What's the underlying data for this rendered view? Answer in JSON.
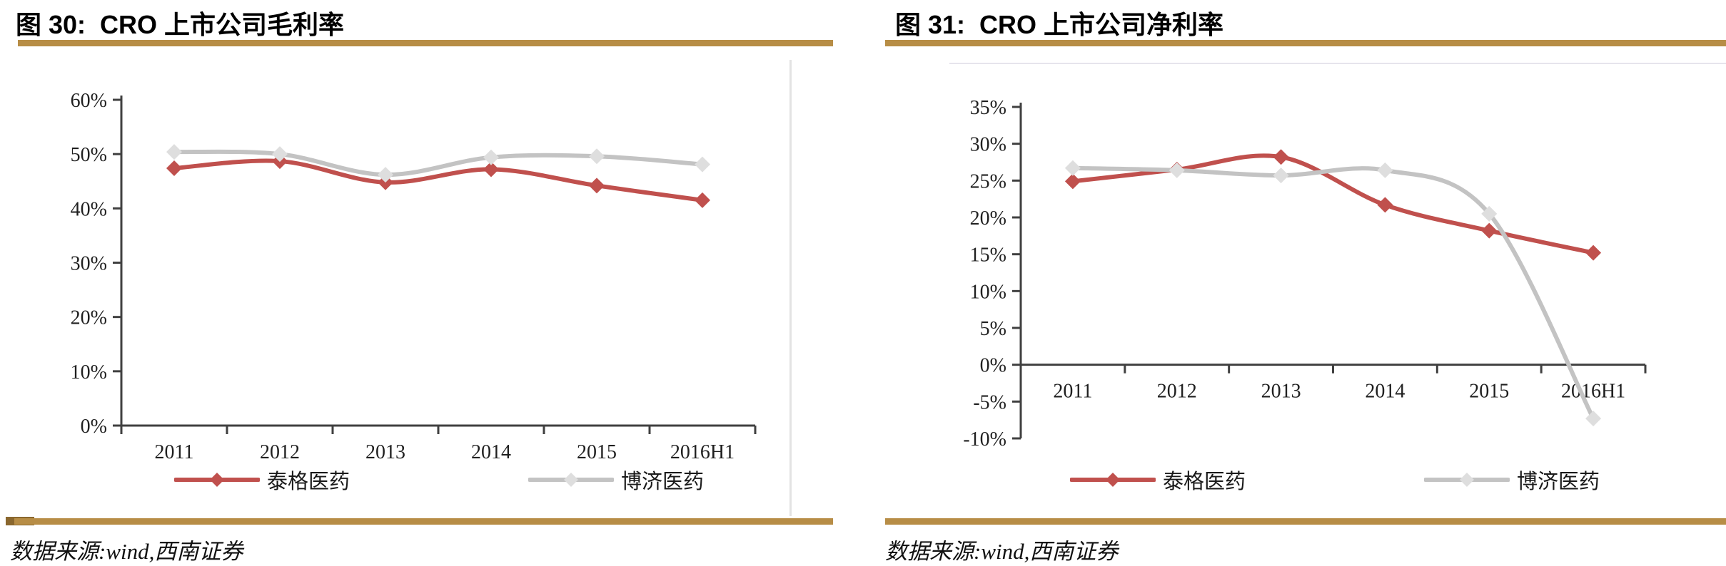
{
  "page": {
    "accent_color": "#b78d46",
    "axis_color": "#404040",
    "background": "#ffffff"
  },
  "left_panel": {
    "title": "图 30:  CRO 上市公司毛利率",
    "source": "数据来源:wind,西南证券"
  },
  "right_panel": {
    "title": "图 31:  CRO 上市公司净利率",
    "source": "数据来源:wind,西南证券"
  },
  "chart_data": [
    {
      "type": "line",
      "title": "CRO 上市公司毛利率",
      "categories": [
        "2011",
        "2012",
        "2013",
        "2014",
        "2015",
        "2016H1"
      ],
      "series": [
        {
          "name": "泰格医药",
          "color": "#c0504d",
          "marker": "#c0504d",
          "values": [
            47.4,
            48.7,
            44.8,
            47.2,
            44.2,
            41.5
          ]
        },
        {
          "name": "博济医药",
          "color": "#c3c3c3",
          "marker": "#dedede",
          "values": [
            50.4,
            50.0,
            46.2,
            49.4,
            49.6,
            48.1
          ]
        }
      ],
      "ylim": [
        0,
        60
      ],
      "ytick_step": 10,
      "ytick_labels": [
        "0%",
        "10%",
        "20%",
        "30%",
        "40%",
        "50%",
        "60%"
      ],
      "xaxis_at": 0,
      "grid": false,
      "legend_position": "bottom",
      "smooth": true
    },
    {
      "type": "line",
      "title": "CRO 上市公司净利率",
      "categories": [
        "2011",
        "2012",
        "2013",
        "2014",
        "2015",
        "2016H1"
      ],
      "series": [
        {
          "name": "泰格医药",
          "color": "#c0504d",
          "marker": "#c0504d",
          "values": [
            24.9,
            26.5,
            28.2,
            21.7,
            18.2,
            15.2
          ]
        },
        {
          "name": "博济医药",
          "color": "#c3c3c3",
          "marker": "#dedede",
          "values": [
            26.7,
            26.4,
            25.7,
            26.4,
            20.5,
            -7.3
          ]
        }
      ],
      "ylim": [
        -10,
        35
      ],
      "ytick_step": 5,
      "ytick_labels": [
        "-10%",
        "-5%",
        "0%",
        "5%",
        "10%",
        "15%",
        "20%",
        "25%",
        "30%",
        "35%"
      ],
      "xaxis_at": 0,
      "grid": false,
      "legend_position": "bottom",
      "smooth": true
    }
  ]
}
